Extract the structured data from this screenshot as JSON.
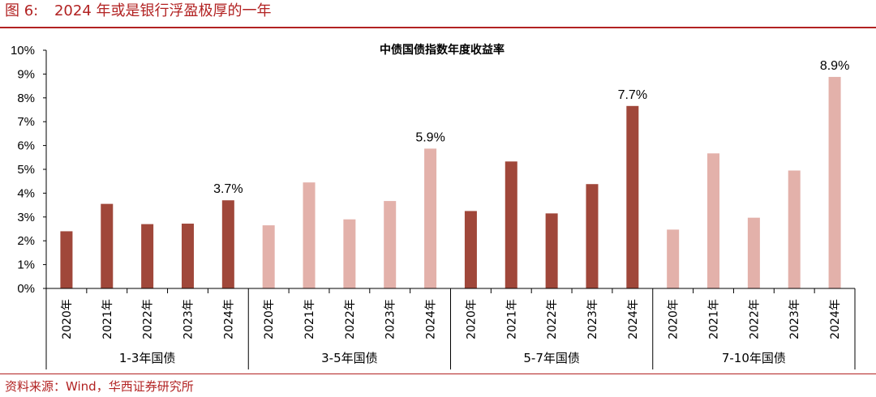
{
  "header": {
    "figure_label": "图 6:",
    "figure_title": "2024 年或是银行浮盈极厚的一年"
  },
  "source_text": "资料来源：Wind，华西证券研究所",
  "colors": {
    "dark": "#A0473A",
    "light": "#E3B1AA",
    "accent": "#B22222"
  },
  "chart_data": {
    "type": "bar",
    "title": "中债国债指数年度收益率",
    "xlabel": "",
    "ylabel": "",
    "ylim": [
      0,
      10
    ],
    "y_ticks": [
      "0%",
      "1%",
      "2%",
      "3%",
      "4%",
      "5%",
      "6%",
      "7%",
      "8%",
      "9%",
      "10%"
    ],
    "legend": "none",
    "grid": false,
    "groups": [
      {
        "name": "1-3年国债",
        "color": "dark",
        "categories": [
          "2020年",
          "2021年",
          "2022年",
          "2023年",
          "2024年"
        ],
        "values": [
          2.4,
          3.55,
          2.7,
          2.72,
          3.7
        ],
        "labels": [
          "",
          "",
          "",
          "",
          "3.7%"
        ]
      },
      {
        "name": "3-5年国债",
        "color": "light",
        "categories": [
          "2020年",
          "2021年",
          "2022年",
          "2023年",
          "2024年"
        ],
        "values": [
          2.65,
          4.45,
          2.9,
          3.67,
          5.87
        ],
        "labels": [
          "",
          "",
          "",
          "",
          "5.9%"
        ]
      },
      {
        "name": "5-7年国债",
        "color": "dark",
        "categories": [
          "2020年",
          "2021年",
          "2022年",
          "2023年",
          "2024年"
        ],
        "values": [
          3.25,
          5.33,
          3.15,
          4.38,
          7.66
        ],
        "labels": [
          "",
          "",
          "",
          "",
          "7.7%"
        ]
      },
      {
        "name": "7-10年国债",
        "color": "light",
        "categories": [
          "2020年",
          "2021年",
          "2022年",
          "2023年",
          "2024年"
        ],
        "values": [
          2.47,
          5.67,
          2.97,
          4.95,
          8.88
        ],
        "labels": [
          "",
          "",
          "",
          "",
          "8.9%"
        ]
      }
    ]
  }
}
